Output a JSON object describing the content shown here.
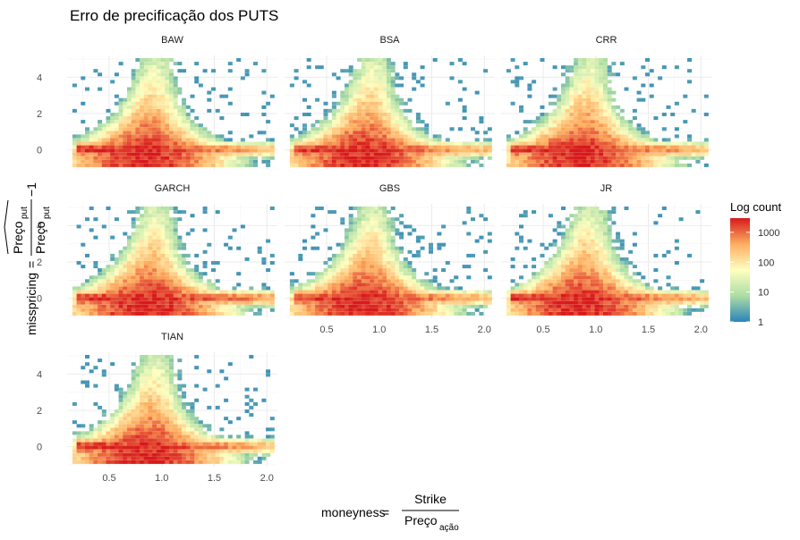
{
  "chart_data": {
    "type": "heatmap",
    "title": "Erro de precificação dos PUTS",
    "xlabel": {
      "lhs": "moneyness",
      "numerator": "Strike",
      "denominator": "Preço",
      "denominator_sub": "ação"
    },
    "ylabel": {
      "lhs": "misspricing",
      "numerator": "Preço",
      "numerator_sub": "put",
      "numerator_hat": true,
      "denominator": "Preço",
      "denominator_sub": "put",
      "suffix": "−1"
    },
    "facets": [
      "BAW",
      "BSA",
      "CRR",
      "GARCH",
      "GBS",
      "JR",
      "TIAN"
    ],
    "xlim": [
      0.1,
      2.1
    ],
    "ylim": [
      -1.1,
      5.2
    ],
    "x_ticks": [
      0.5,
      1.0,
      1.5,
      2.0
    ],
    "x_tick_labels": [
      "0.5",
      "1.0",
      "1.5",
      "2.0"
    ],
    "y_ticks": [
      0,
      2,
      4
    ],
    "y_tick_labels": [
      "0",
      "2",
      "4"
    ],
    "grid": true,
    "legend": {
      "title": "Log count",
      "position": "right",
      "scale": "log",
      "breaks": [
        1,
        10,
        100,
        1000
      ],
      "labels": [
        "1",
        "10",
        "100",
        "1000"
      ],
      "max": 3000,
      "colors": [
        "#2b83ba",
        "#abdda4",
        "#ffffbf",
        "#fdae61",
        "#d7191c"
      ]
    }
  }
}
